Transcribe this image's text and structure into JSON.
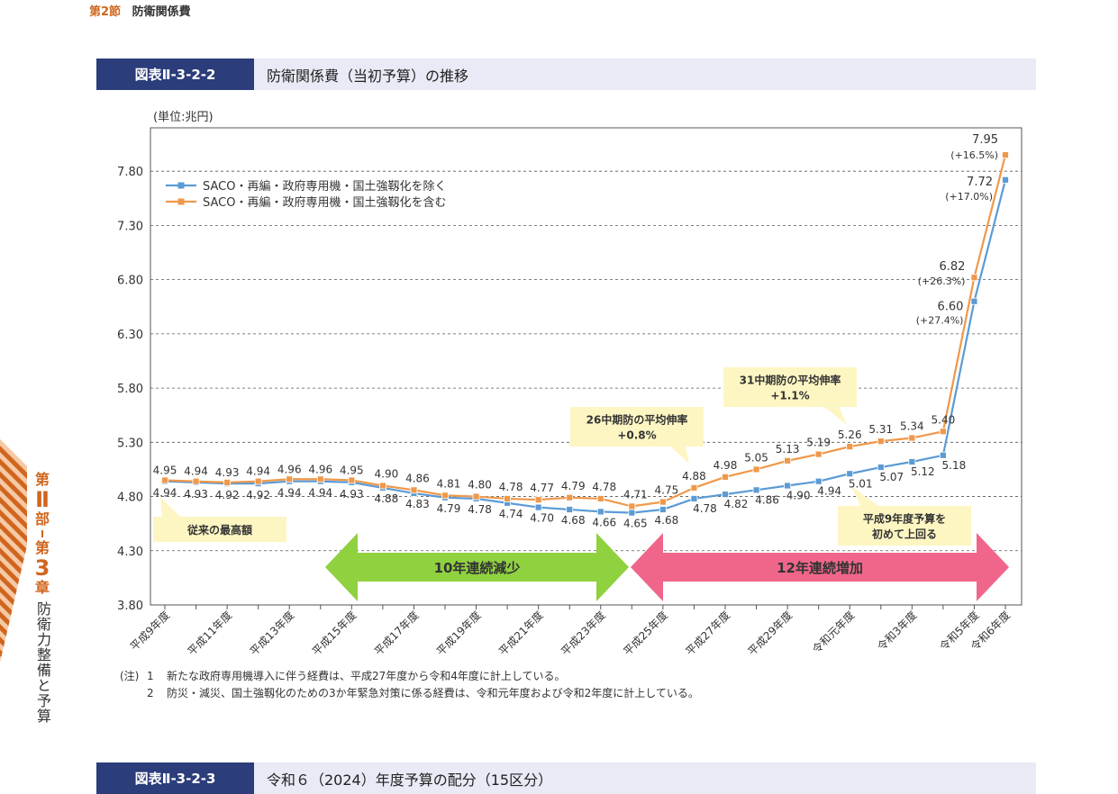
{
  "section": {
    "number": "第2節",
    "name": "防衛関係費"
  },
  "figure": {
    "number": "図表Ⅱ-3-2-2",
    "title": "防衛関係費（当初予算）の推移"
  },
  "next_figure": {
    "number": "図表Ⅱ-3-2-3",
    "title": "令和６（2024）年度予算の配分（15区分）"
  },
  "side_nav": {
    "part_pre": "第",
    "part_no": "Ⅱ",
    "part_post": "部",
    "chap_pre": "第",
    "chap_no": "3",
    "chap_post": "章",
    "chapter_title": "防衛力整備と予算"
  },
  "colors": {
    "series_excl": "#5b9bd5",
    "series_incl": "#f0984a",
    "decrease_arrow": "#8fd13f",
    "increase_arrow": "#f0668a",
    "callout": "#fdf6c3",
    "header_bar": "#2b3d7a",
    "accent": "#d0661e"
  },
  "chart_data": {
    "type": "line",
    "unit_label": "(単位:兆円)",
    "ylim": [
      3.8,
      8.2
    ],
    "yticks": [
      "3.80",
      "4.30",
      "4.80",
      "5.30",
      "5.80",
      "6.30",
      "6.80",
      "7.30",
      "7.80"
    ],
    "x_labels": [
      "平成9年度",
      "平成11年度",
      "平成13年度",
      "平成15年度",
      "平成17年度",
      "平成19年度",
      "平成21年度",
      "平成23年度",
      "平成25年度",
      "平成27年度",
      "平成29年度",
      "令和元年度",
      "令和3年度",
      "令和5年度",
      "令和6年度"
    ],
    "grid": "horizontal dashed",
    "legend_position": "top-left",
    "series": [
      {
        "name": "SACO・再編・政府専用機・国土強靱化を除く",
        "color": "#5b9bd5",
        "values": [
          4.94,
          4.93,
          4.92,
          4.92,
          4.94,
          4.94,
          4.93,
          4.88,
          4.83,
          4.79,
          4.78,
          4.74,
          4.7,
          4.68,
          4.66,
          4.65,
          4.68,
          4.78,
          4.82,
          4.86,
          4.9,
          4.94,
          5.01,
          5.07,
          5.12,
          5.18,
          6.6,
          7.72
        ],
        "labels": [
          "4.94",
          "4.93",
          "4.92",
          "4.92",
          "4.94",
          "4.94",
          "4.93",
          "4.88",
          "4.83",
          "4.79",
          "4.78",
          "4.74",
          "4.70",
          "4.68",
          "4.66",
          "4.65",
          "4.68",
          "4.78",
          "4.82",
          "4.86",
          "4.90",
          "4.94",
          "5.01",
          "5.07",
          "5.12",
          "5.18",
          "6.60",
          "7.72"
        ]
      },
      {
        "name": "SACO・再編・政府専用機・国土強靱化を含む",
        "color": "#f0984a",
        "values": [
          4.95,
          4.94,
          4.93,
          4.94,
          4.96,
          4.96,
          4.95,
          4.9,
          4.86,
          4.81,
          4.8,
          4.78,
          4.77,
          4.79,
          4.78,
          4.71,
          4.75,
          4.88,
          4.98,
          5.05,
          5.13,
          5.19,
          5.26,
          5.31,
          5.34,
          5.4,
          6.82,
          7.95
        ],
        "labels": [
          "4.95",
          "4.94",
          "4.93",
          "4.94",
          "4.96",
          "4.96",
          "4.95",
          "4.90",
          "4.86",
          "4.81",
          "4.80",
          "4.78",
          "4.77",
          "4.79",
          "4.78",
          "4.71",
          "4.75",
          "4.88",
          "4.98",
          "5.05",
          "5.13",
          "5.19",
          "5.26",
          "5.31",
          "5.34",
          "5.40",
          "6.82",
          "7.95"
        ]
      }
    ],
    "growth_notes": [
      {
        "text": "(+16.5%)"
      },
      {
        "text": "(+17.0%)"
      },
      {
        "text": "(+26.3%)"
      },
      {
        "text": "(+27.4%)"
      }
    ],
    "callouts": [
      {
        "lines": [
          "従来の最高額"
        ]
      },
      {
        "lines": [
          "26中期防の平均伸率",
          "+0.8%"
        ]
      },
      {
        "lines": [
          "31中期防の平均伸率",
          "+1.1%"
        ]
      },
      {
        "lines": [
          "平成9年度予算を",
          "初めて上回る"
        ]
      }
    ],
    "trend_arrows": [
      {
        "label": "10年連続減少"
      },
      {
        "label": "12年連続増加"
      }
    ]
  },
  "notes": [
    {
      "prefix": "(注)",
      "index": "1",
      "text": "新たな政府専用機導入に伴う経費は、平成27年度から令和4年度に計上している。"
    },
    {
      "prefix": "",
      "index": "2",
      "text": "防災・減災、国土強靱化のための3か年緊急対策に係る経費は、令和元年度および令和2年度に計上している。"
    }
  ]
}
